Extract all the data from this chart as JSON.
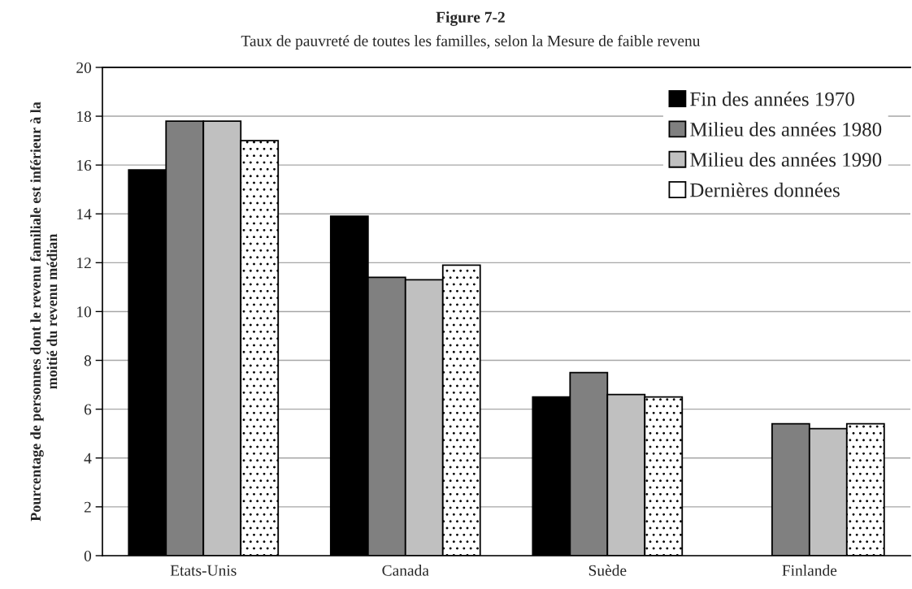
{
  "chart_data": {
    "type": "bar",
    "title": "Figure 7-2",
    "subtitle": "Taux de pauvreté de toutes les familles, selon la Mesure de faible revenu",
    "ylabel": "Pourcentage de personnes dont le revenu familiale est inférieur à la\nmoitié du revenu médian",
    "categories": [
      "Etats-Unis",
      "Canada",
      "Suède",
      "Finlande"
    ],
    "series": [
      {
        "name": "Fin des années 1970",
        "color": "#000000",
        "values": [
          15.8,
          13.9,
          6.5,
          null
        ]
      },
      {
        "name": "Milieu des années 1980",
        "color": "#808080",
        "values": [
          17.8,
          11.4,
          7.5,
          5.4
        ]
      },
      {
        "name": "Milieu des années 1990",
        "color": "#c0c0c0",
        "values": [
          17.8,
          11.3,
          6.6,
          5.2
        ]
      },
      {
        "name": "Dernières données",
        "color": "#ffffff",
        "values": [
          17.0,
          11.9,
          6.5,
          5.4
        ]
      }
    ],
    "ylim": [
      0,
      20
    ],
    "yticks": [
      0,
      2,
      4,
      6,
      8,
      10,
      12,
      14,
      16,
      18,
      20
    ],
    "grid": "y",
    "legend": "top right"
  }
}
